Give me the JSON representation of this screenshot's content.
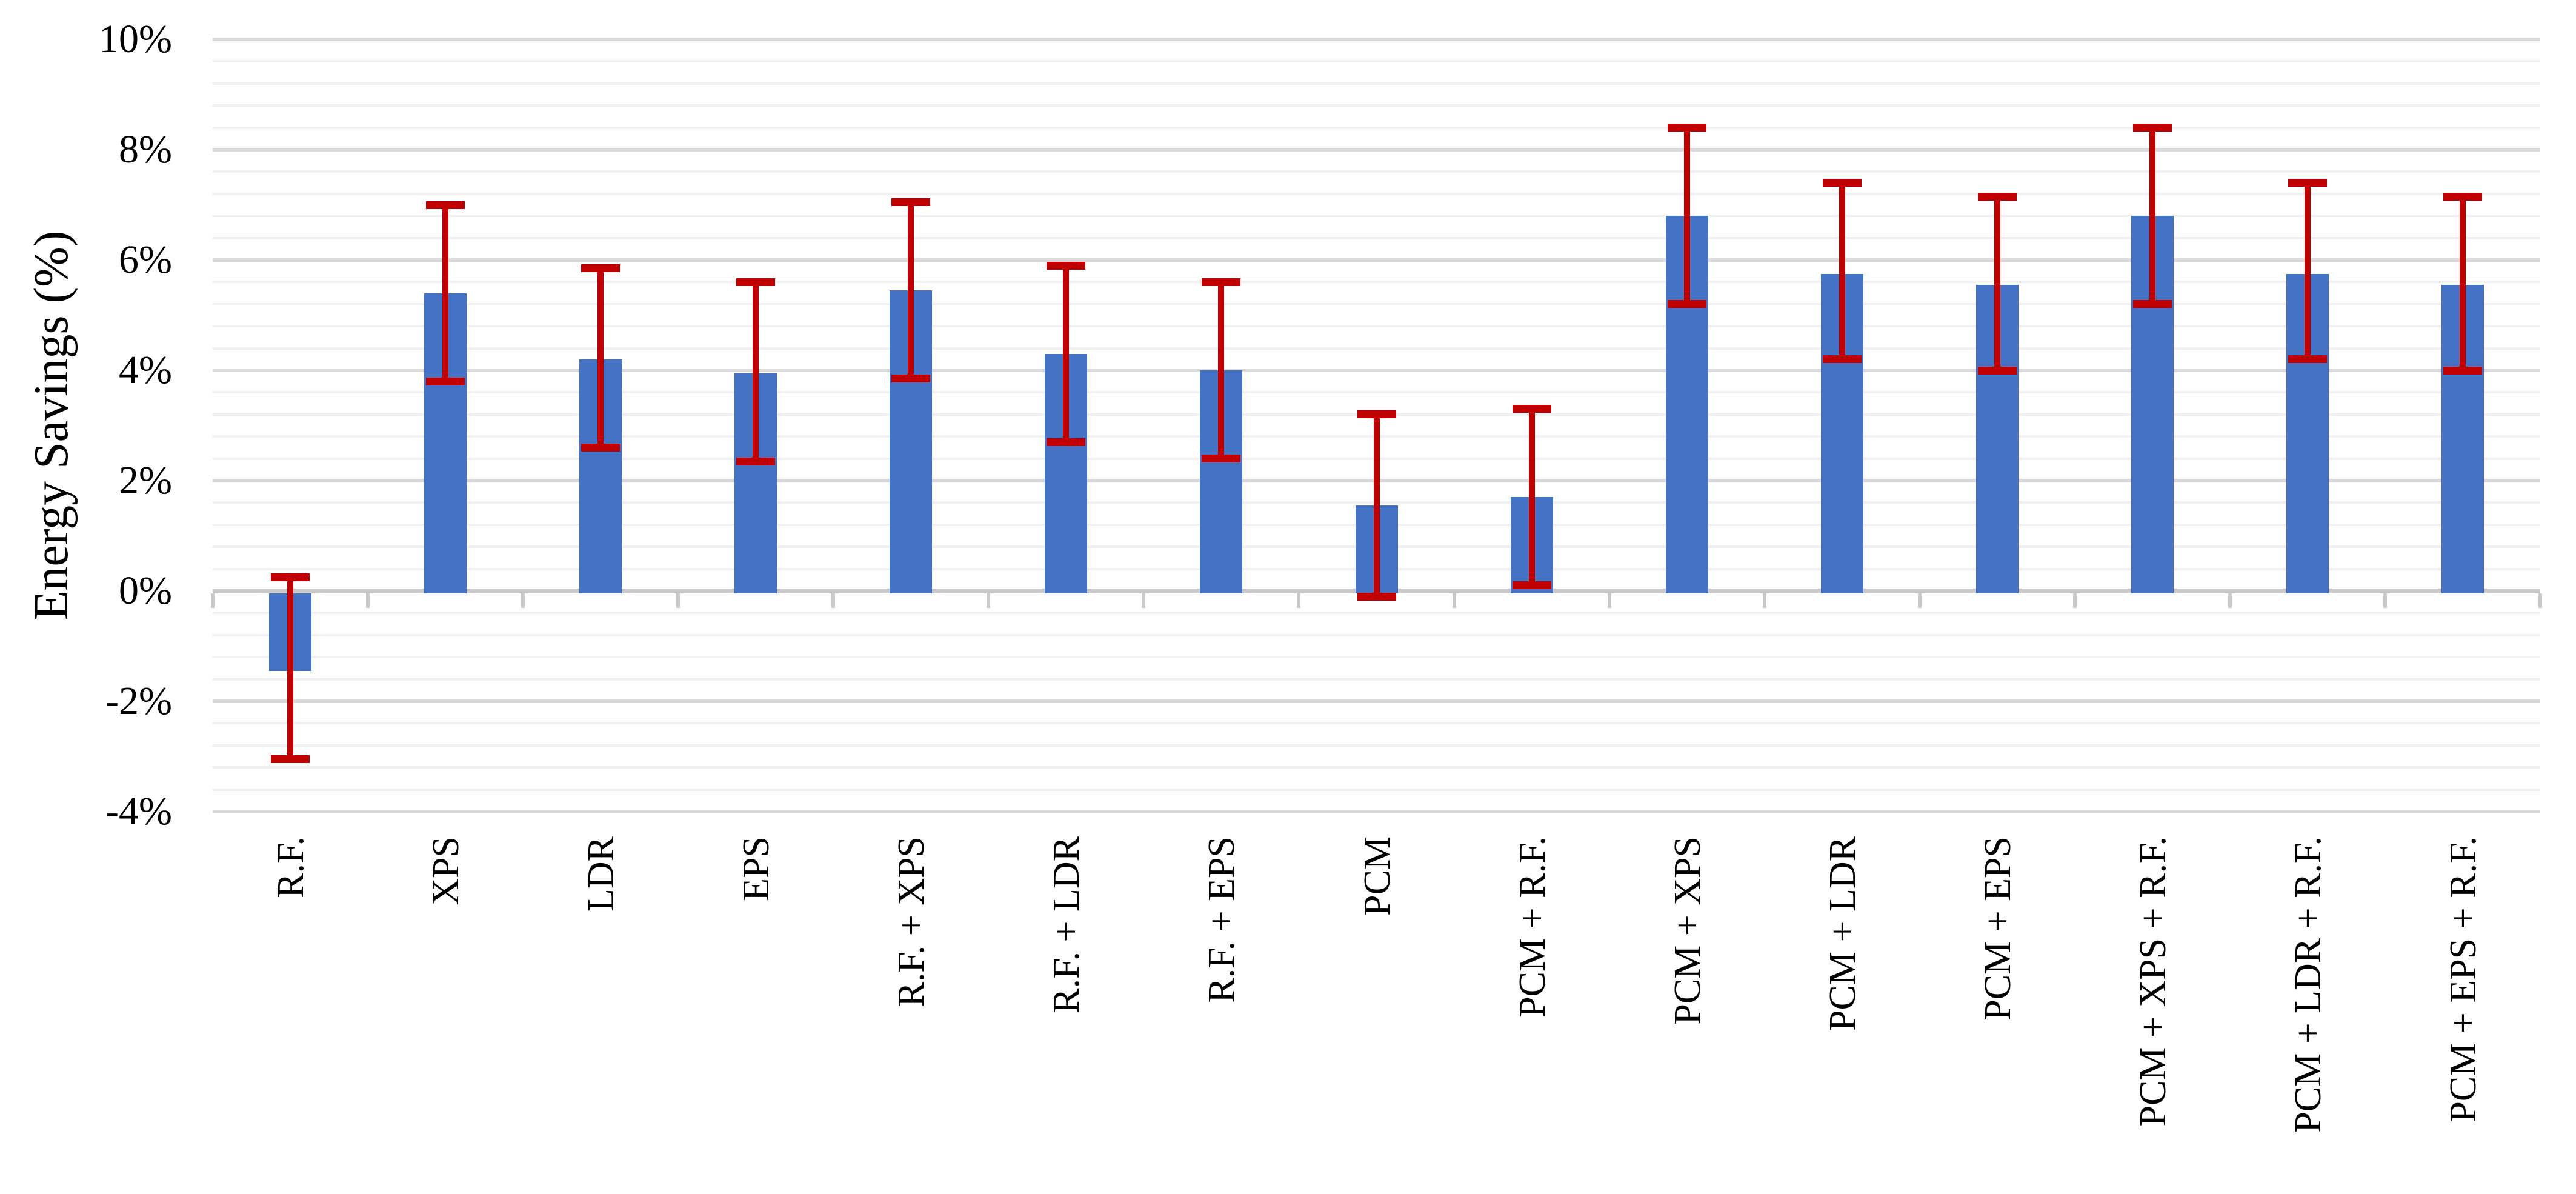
{
  "chart_data": {
    "type": "bar",
    "title": "",
    "ylabel": "Energy Savings (%)",
    "xlabel": "",
    "categories": [
      "R.F.",
      "XPS",
      "LDR",
      "EPS",
      "R.F. + XPS",
      "R.F. + LDR",
      "R.F. + EPS",
      "PCM",
      "PCM + R.F.",
      "PCM + XPS",
      "PCM + LDR",
      "PCM + EPS",
      "PCM + XPS + R.F.",
      "PCM + LDR + R.F.",
      "PCM + EPS + R.F."
    ],
    "series": [
      {
        "name": "Energy Savings",
        "values": [
          -1.45,
          5.4,
          4.2,
          3.95,
          5.45,
          4.3,
          4.0,
          1.55,
          1.7,
          6.8,
          5.75,
          5.55,
          6.8,
          5.75,
          5.55
        ],
        "error_high": [
          0.25,
          7.0,
          5.85,
          5.6,
          7.05,
          5.9,
          5.6,
          3.2,
          3.3,
          8.4,
          7.4,
          7.15,
          8.4,
          7.4,
          7.15
        ],
        "error_low": [
          -3.05,
          3.8,
          2.6,
          2.35,
          3.85,
          2.7,
          2.4,
          -0.1,
          0.1,
          5.2,
          4.2,
          4.0,
          5.2,
          4.2,
          4.0
        ]
      }
    ],
    "y_axis": {
      "min": -4,
      "max": 10,
      "major_unit": 2,
      "minor_unit": 0.4,
      "tick_labels": [
        "10%",
        "8%",
        "6%",
        "4%",
        "2%",
        "0%",
        "-2%",
        "-4%"
      ],
      "tick_values": [
        10,
        8,
        6,
        4,
        2,
        0,
        -2,
        -4
      ],
      "grid": true
    },
    "legend": {
      "visible": false
    },
    "colors": {
      "bar": "#4472C4",
      "error_bar": "#C00000",
      "grid_major": "#DADADA",
      "grid_minor": "#F1F1F1",
      "axis_line": "#C9C9C9",
      "text": "#000000"
    }
  }
}
